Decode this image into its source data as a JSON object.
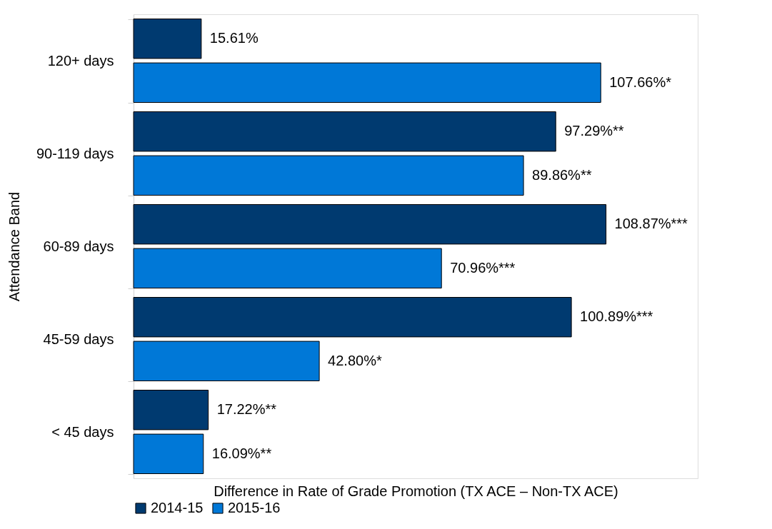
{
  "chart_data": {
    "type": "bar",
    "orientation": "horizontal",
    "xlabel": "Difference in Rate of Grade Promotion (TX ACE – Non-TX ACE)",
    "ylabel": "Attendance Band",
    "categories": [
      "120+ days",
      "90-119 days",
      "60-89 days",
      "45-59 days",
      "< 45 days"
    ],
    "series": [
      {
        "name": "2014-15",
        "color": "#003a70",
        "values": [
          15.61,
          97.29,
          108.87,
          100.89,
          17.22
        ],
        "value_labels": [
          "15.61%",
          "97.29%**",
          "108.87%***",
          "100.89%***",
          "17.22%**"
        ]
      },
      {
        "name": "2015-16",
        "color": "#0078d7",
        "values": [
          107.66,
          89.86,
          70.96,
          42.8,
          16.09
        ],
        "value_labels": [
          "107.66%*",
          "89.86%**",
          "70.96%***",
          "42.80%*",
          "16.09%**"
        ]
      }
    ],
    "xlim": [
      0,
      130
    ],
    "tick_labels": "y",
    "legend": "bottom"
  }
}
